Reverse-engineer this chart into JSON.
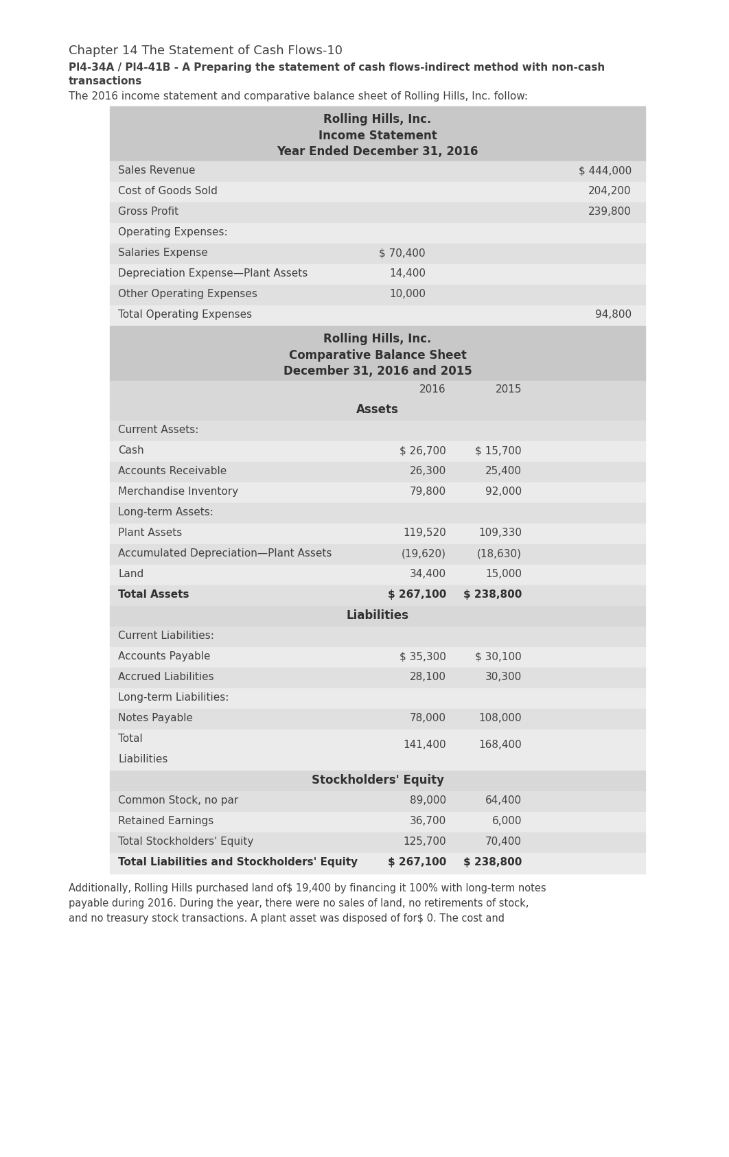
{
  "title_main": "Chapter 14 The Statement of Cash Flows-10",
  "subtitle_line1": "Pl4-34A / Pl4-41B - A Preparing the statement of cash flows-indirect method with non-cash",
  "subtitle_line2": "transactions",
  "intro_text": "The 2016 income statement and comparative balance sheet of Rolling Hills, Inc. follow:",
  "is_header1": "Rolling Hills, Inc.",
  "is_header2": "Income Statement",
  "is_header3": "Year Ended December 31, 2016",
  "income_rows": [
    {
      "label": "Sales Revenue",
      "col1": "",
      "col2": "$ 444,000",
      "indent": 0
    },
    {
      "label": "Cost of Goods Sold",
      "col1": "",
      "col2": "204,200",
      "indent": 0
    },
    {
      "label": "Gross Profit",
      "col1": "",
      "col2": "239,800",
      "indent": 0
    },
    {
      "label": "Operating Expenses:",
      "col1": "",
      "col2": "",
      "indent": 0
    },
    {
      "label": "Salaries Expense",
      "col1": "$ 70,400",
      "col2": "",
      "indent": 0
    },
    {
      "label": "Depreciation Expense—Plant Assets",
      "col1": "14,400",
      "col2": "",
      "indent": 0
    },
    {
      "label": "Other Operating Expenses",
      "col1": "10,000",
      "col2": "",
      "indent": 0
    },
    {
      "label": "Total Operating Expenses",
      "col1": "",
      "col2": "94,800",
      "indent": 0
    }
  ],
  "bs_header1": "Rolling Hills, Inc.",
  "bs_header2": "Comparative Balance Sheet",
  "bs_header3": "December 31, 2016 and 2015",
  "bs_section1": "Assets",
  "bs_assets_rows": [
    {
      "label": "Current Assets:",
      "col1": "",
      "col2": "",
      "bold": false
    },
    {
      "label": "Cash",
      "col1": "$ 26,700",
      "col2": "$ 15,700",
      "bold": false
    },
    {
      "label": "Accounts Receivable",
      "col1": "26,300",
      "col2": "25,400",
      "bold": false
    },
    {
      "label": "Merchandise Inventory",
      "col1": "79,800",
      "col2": "92,000",
      "bold": false
    },
    {
      "label": "Long-term Assets:",
      "col1": "",
      "col2": "",
      "bold": false
    },
    {
      "label": "Plant Assets",
      "col1": "119,520",
      "col2": "109,330",
      "bold": false
    },
    {
      "label": "Accumulated Depreciation—Plant Assets",
      "col1": "(19,620)",
      "col2": "(18,630)",
      "bold": false
    },
    {
      "label": "Land",
      "col1": "34,400",
      "col2": "15,000",
      "bold": false
    },
    {
      "label": "Total Assets",
      "col1": "$ 267,100",
      "col2": "$ 238,800",
      "bold": true
    }
  ],
  "bs_section2": "Liabilities",
  "bs_liab_rows": [
    {
      "label": "Current Liabilities:",
      "col1": "",
      "col2": "",
      "bold": false,
      "multiline": false
    },
    {
      "label": "Accounts Payable",
      "col1": "$ 35,300",
      "col2": "$ 30,100",
      "bold": false,
      "multiline": false
    },
    {
      "label": "Accrued Liabilities",
      "col1": "28,100",
      "col2": "30,300",
      "bold": false,
      "multiline": false
    },
    {
      "label": "Long-term Liabilities:",
      "col1": "",
      "col2": "",
      "bold": false,
      "multiline": false
    },
    {
      "label": "Notes Payable",
      "col1": "78,000",
      "col2": "108,000",
      "bold": false,
      "multiline": false
    },
    {
      "label": "Total\nLiabilities",
      "col1": "141,400",
      "col2": "168,400",
      "bold": false,
      "multiline": true
    }
  ],
  "bs_section3": "Stockholders' Equity",
  "bs_equity_rows": [
    {
      "label": "Common Stock, no par",
      "col1": "89,000",
      "col2": "64,400",
      "bold": false
    },
    {
      "label": "Retained Earnings",
      "col1": "36,700",
      "col2": "6,000",
      "bold": false
    },
    {
      "label": "Total Stockholders' Equity",
      "col1": "125,700",
      "col2": "70,400",
      "bold": false
    },
    {
      "label": "Total Liabilities and Stockholders' Equity",
      "col1": "$ 267,100",
      "col2": "$ 238,800",
      "bold": true
    }
  ],
  "footer_lines": [
    "Additionally, Rolling Hills purchased land of$ 19,400 by financing it 100% with long-term notes",
    "payable during 2016. During the year, there were no sales of land, no retirements of stock,",
    "and no treasury stock transactions. A plant asset was disposed of for$ 0. The cost and"
  ],
  "bg_color": "#ffffff",
  "header_bg": "#c8c8c8",
  "row_bg1": "#e0e0e0",
  "row_bg2": "#ebebeb",
  "section_hdr_bg": "#c8c8c8",
  "col_hdr_bg": "#d8d8d8",
  "text_color": "#404040",
  "bold_color": "#303030"
}
